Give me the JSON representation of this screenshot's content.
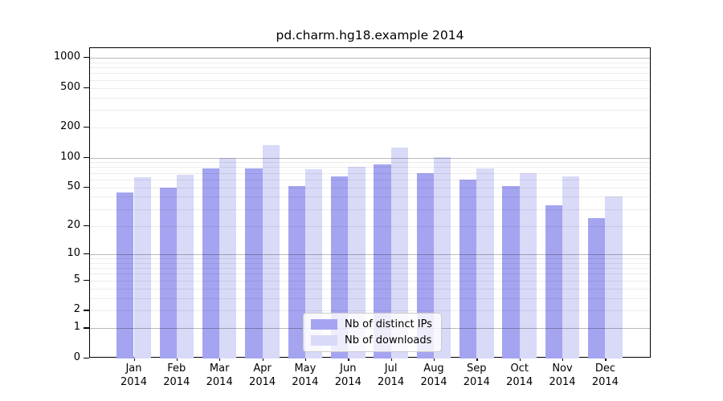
{
  "figure": {
    "background": "#ffffff",
    "plot_border_color": "#000000"
  },
  "chart_data": {
    "type": "bar",
    "title": "pd.charm.hg18.example 2014",
    "categories": [
      "Jan",
      "Feb",
      "Mar",
      "Apr",
      "May",
      "Jun",
      "Jul",
      "Aug",
      "Sep",
      "Oct",
      "Nov",
      "Dec"
    ],
    "category_year": "2014",
    "series": [
      {
        "name": "Nb of distinct IPs",
        "color": "#a4a4f0",
        "values": [
          44,
          50,
          78,
          78,
          52,
          65,
          85,
          70,
          60,
          52,
          33,
          24
        ]
      },
      {
        "name": "Nb of downloads",
        "color": "#d9d9f8",
        "values": [
          63,
          67,
          100,
          134,
          76,
          80,
          126,
          101,
          78,
          70,
          64,
          40
        ]
      }
    ],
    "xlabel": "",
    "ylabel": "",
    "yscale": "log1p",
    "y_ticks": [
      0,
      1,
      2,
      5,
      10,
      20,
      50,
      100,
      200,
      500,
      1000
    ],
    "ylim": [
      0,
      1300
    ],
    "grid": "on",
    "grid_major_color": "#b9b9b9",
    "grid_minor_color": "#ececec",
    "legend_position": "lower center"
  }
}
